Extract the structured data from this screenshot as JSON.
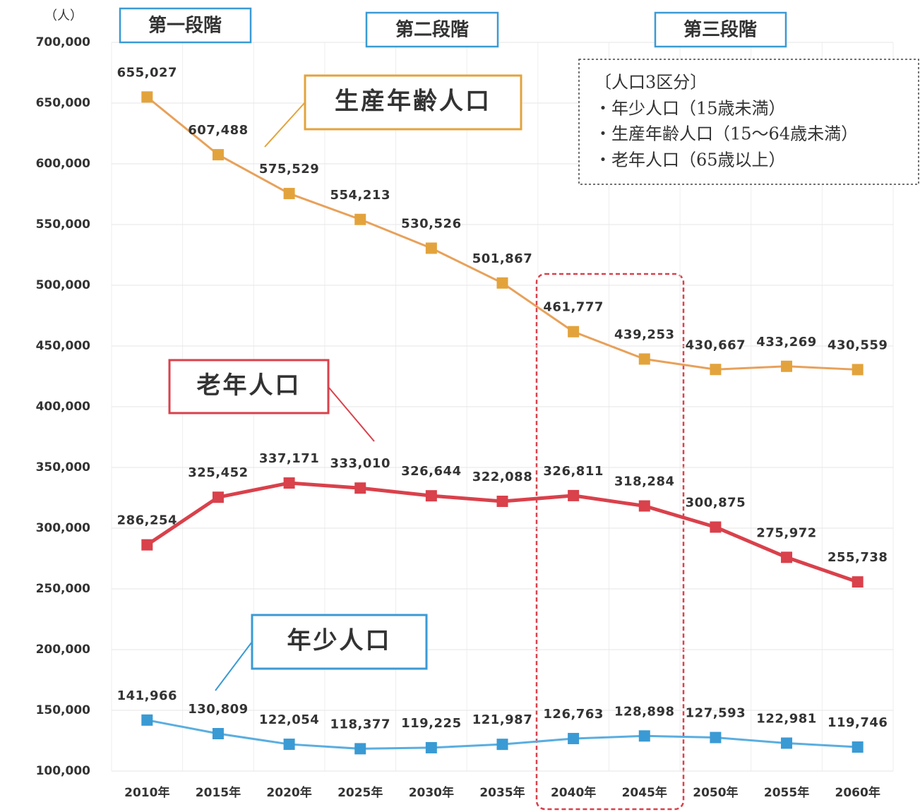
{
  "chart_data": {
    "type": "line",
    "unit_label": "（人）",
    "categories": [
      "2010年",
      "2015年",
      "2020年",
      "2025年",
      "2030年",
      "2035年",
      "2040年",
      "2045年",
      "2050年",
      "2055年",
      "2060年"
    ],
    "series": [
      {
        "name": "生産年齢人口",
        "color": "#e3a33c",
        "line_color": "#e8a15a",
        "values": [
          655027,
          607488,
          575529,
          554213,
          530526,
          501867,
          461777,
          439253,
          430667,
          433269,
          430559
        ],
        "value_labels": [
          "655,027",
          "607,488",
          "575,529",
          "554,213",
          "530,526",
          "501,867",
          "461,777",
          "439,253",
          "430,667",
          "433,269",
          "430,559"
        ]
      },
      {
        "name": "老年人口",
        "color": "#d9414b",
        "line_color": "#d9414b",
        "values": [
          286254,
          325452,
          337171,
          333010,
          326644,
          322088,
          326811,
          318284,
          300875,
          275972,
          255738
        ],
        "value_labels": [
          "286,254",
          "325,452",
          "337,171",
          "333,010",
          "326,644",
          "322,088",
          "326,811",
          "318,284",
          "300,875",
          "275,972",
          "255,738"
        ]
      },
      {
        "name": "年少人口",
        "color": "#3a9ad4",
        "line_color": "#5aaee0",
        "values": [
          141966,
          130809,
          122054,
          118377,
          119225,
          121987,
          126763,
          128898,
          127593,
          122981,
          119746
        ],
        "value_labels": [
          "141,966",
          "130,809",
          "122,054",
          "118,377",
          "119,225",
          "121,987",
          "126,763",
          "128,898",
          "127,593",
          "122,981",
          "119,746"
        ]
      }
    ],
    "ylim": [
      100000,
      700000
    ],
    "yticks": [
      {
        "value": 100000,
        "label": "100,000"
      },
      {
        "value": 150000,
        "label": "150,000"
      },
      {
        "value": 200000,
        "label": "200,000"
      },
      {
        "value": 250000,
        "label": "250,000"
      },
      {
        "value": 300000,
        "label": "300,000"
      },
      {
        "value": 350000,
        "label": "350,000"
      },
      {
        "value": 400000,
        "label": "400,000"
      },
      {
        "value": 450000,
        "label": "450,000"
      },
      {
        "value": 500000,
        "label": "500,000"
      },
      {
        "value": 550000,
        "label": "550,000"
      },
      {
        "value": 600000,
        "label": "600,000"
      },
      {
        "value": 650000,
        "label": "650,000"
      },
      {
        "value": 700000,
        "label": "700,000"
      }
    ],
    "grid": true,
    "stages": [
      "第一段階",
      "第二段階",
      "第三段階"
    ],
    "note": {
      "title": "〔人口3区分〕",
      "items": [
        "・年少人口（15歳未満）",
        "・生産年齢人口（15～64歳未満）",
        "・老年人口（65歳以上）"
      ]
    }
  }
}
